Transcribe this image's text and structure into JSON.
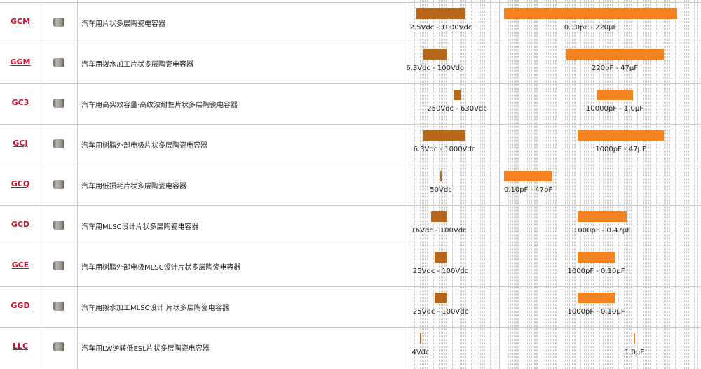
{
  "rows": [
    {
      "code": "GCM",
      "name": "汽车用片状多层陶瓷电容器",
      "voltage": "2.5Vdc - 1000Vdc",
      "capacitance": "0.10pF - 220μF"
    },
    {
      "code": "GGM",
      "name": "汽车用拨水加工片状多层陶瓷电容器",
      "voltage": "6.3Vdc - 100Vdc",
      "capacitance": "220pF - 47μF"
    },
    {
      "code": "GC3",
      "name": "汽车用高实效容量·高纹波耐性片状多层陶瓷电容器",
      "voltage": "250Vdc - 630Vdc",
      "capacitance": "10000pF - 1.0μF"
    },
    {
      "code": "GCJ",
      "name": "汽车用树脂外部电极片状多层陶瓷电容器",
      "voltage": "6.3Vdc - 1000Vdc",
      "capacitance": "1000pF - 47μF"
    },
    {
      "code": "GCQ",
      "name": "汽车用低损耗片状多层陶瓷电容器",
      "voltage": "50Vdc",
      "capacitance": "0.10pF - 47pF"
    },
    {
      "code": "GCD",
      "name": "汽车用MLSC设计片状多层陶瓷电容器",
      "voltage": "16Vdc - 100Vdc",
      "capacitance": "1000pF - 0.47μF"
    },
    {
      "code": "GCE",
      "name": "汽车用树脂外部电极MLSC设计片状多层陶瓷电容器",
      "voltage": "25Vdc - 100Vdc",
      "capacitance": "1000pF - 0.10μF"
    },
    {
      "code": "GGD",
      "name": "汽车用拨水加工MLSC设计 片状多层陶瓷电容器",
      "voltage": "25Vdc - 100Vdc",
      "capacitance": "1000pF - 0.10μF"
    },
    {
      "code": "LLC",
      "name": "汽车用LW逆转低ESL片状多层陶瓷电容器",
      "voltage": "4Vdc",
      "capacitance": "1.0μF"
    }
  ]
}
